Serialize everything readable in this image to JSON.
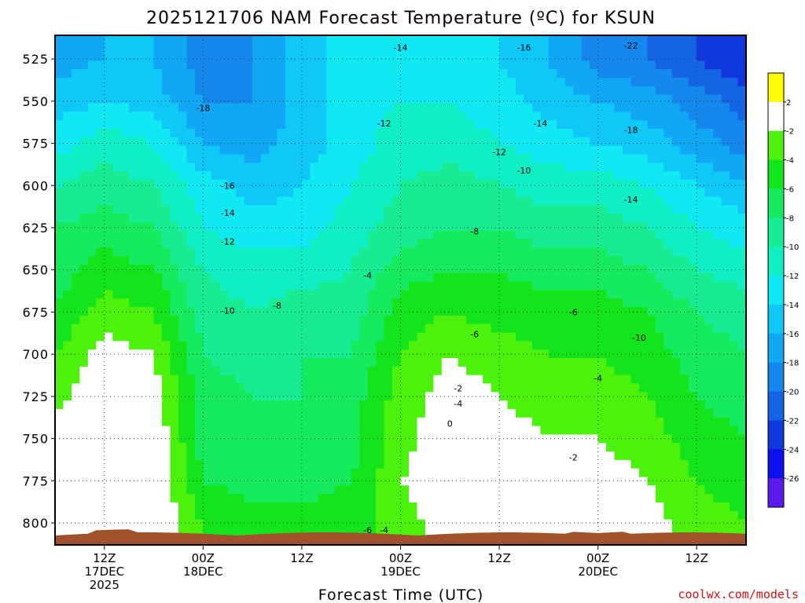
{
  "chart_data": {
    "type": "heatmap",
    "title": "2025121706 NAM Forecast Temperature (ºC) for KSUN",
    "xlabel": "Forecast Time (UTC)",
    "ylabel": "",
    "y_ticks": [
      "525",
      "550",
      "575",
      "600",
      "625",
      "650",
      "675",
      "700",
      "725",
      "750",
      "775",
      "800"
    ],
    "y_values": [
      525,
      550,
      575,
      600,
      625,
      650,
      675,
      700,
      725,
      750,
      775,
      800
    ],
    "ylim": [
      813,
      511
    ],
    "x_ticks": [
      {
        "hour": 6,
        "lines": [
          "12Z",
          "17DEC",
          "2025"
        ]
      },
      {
        "hour": 18,
        "lines": [
          "00Z",
          "18DEC"
        ]
      },
      {
        "hour": 30,
        "lines": [
          "12Z"
        ]
      },
      {
        "hour": 42,
        "lines": [
          "00Z",
          "19DEC"
        ]
      },
      {
        "hour": 54,
        "lines": [
          "12Z"
        ]
      },
      {
        "hour": 66,
        "lines": [
          "00Z",
          "20DEC"
        ]
      },
      {
        "hour": 78,
        "lines": [
          "12Z"
        ]
      }
    ],
    "xlim": [
      0,
      84
    ],
    "colorbar": {
      "levels": [
        2,
        -2,
        -4,
        -6,
        -8,
        -10,
        -12,
        -14,
        -16,
        -18,
        -20,
        -22,
        -24,
        -26
      ],
      "labels": [
        "2",
        "-2",
        "-4",
        "-6",
        "-8",
        "-10",
        "-12",
        "-14",
        "-16",
        "-18",
        "-20",
        "-22",
        "-24",
        "-26"
      ],
      "colors": [
        "#ffff00",
        "#ffffff",
        "#4cf20c",
        "#14e41c",
        "#16ea5e",
        "#18ec92",
        "#10eec4",
        "#10e8f4",
        "#10c8f8",
        "#10a8f4",
        "#1488ec",
        "#1464e4",
        "#1038dc",
        "#0c10f0",
        "#5a1aee"
      ]
    },
    "temperature_profile_hours": [
      0,
      6,
      12,
      18,
      24,
      30,
      36,
      42,
      48,
      54,
      60,
      66,
      72,
      78,
      84
    ],
    "temperature_profiles": {
      "525": [
        -17,
        -16,
        -16,
        -19,
        -18,
        -15,
        -13,
        -13,
        -14,
        -14,
        -16,
        -19,
        -20,
        -22,
        -24
      ],
      "550": [
        -15,
        -14,
        -15,
        -18,
        -18,
        -15,
        -13,
        -12,
        -12,
        -13,
        -15,
        -16,
        -17,
        -19,
        -21
      ],
      "575": [
        -13,
        -11,
        -12,
        -16,
        -17,
        -15,
        -13,
        -11,
        -11,
        -12,
        -13,
        -14,
        -15,
        -17,
        -19
      ],
      "600": [
        -10,
        -9,
        -10,
        -13,
        -15,
        -14,
        -12,
        -10,
        -9,
        -10,
        -11,
        -11,
        -12,
        -14,
        -16
      ],
      "625": [
        -8,
        -7,
        -8,
        -12,
        -13,
        -13,
        -11,
        -9,
        -8,
        -8,
        -9,
        -9,
        -10,
        -12,
        -13
      ],
      "650": [
        -7,
        -5,
        -6,
        -10,
        -11,
        -11,
        -10,
        -7,
        -6,
        -6,
        -7,
        -7,
        -8,
        -10,
        -11
      ],
      "675": [
        -6,
        -3,
        -4,
        -9,
        -10,
        -9,
        -9,
        -5,
        -4,
        -5,
        -5,
        -5,
        -6,
        -8,
        -9
      ],
      "700": [
        -4,
        -1,
        -2,
        -8,
        -9,
        -8,
        -8,
        -4,
        -2,
        -3,
        -4,
        -4,
        -5,
        -7,
        -8
      ],
      "725": [
        -3,
        0,
        -1,
        -7,
        -8,
        -8,
        -7,
        -3,
        -1,
        -2,
        -3,
        -3,
        -4,
        -6,
        -7
      ],
      "750": [
        -1,
        1,
        0,
        -7,
        -8,
        -7,
        -7,
        -3,
        0,
        -1,
        -2,
        -2,
        -3,
        -5,
        -6
      ],
      "775": [
        1,
        1,
        0,
        -6,
        -7,
        -7,
        -6,
        -2,
        0,
        -1,
        -1,
        -1,
        -2,
        -4,
        -5
      ],
      "800": [
        1,
        2,
        0,
        -4,
        -5,
        -5,
        -5,
        -3,
        -1,
        -1,
        0,
        0,
        -1,
        -3,
        -4
      ]
    },
    "contour_labels": [
      {
        "text": "-14",
        "hour": 42,
        "p": 520
      },
      {
        "text": "-16",
        "hour": 57,
        "p": 520
      },
      {
        "text": "-22",
        "hour": 70,
        "p": 519
      },
      {
        "text": "-18",
        "hour": 18,
        "p": 556
      },
      {
        "text": "-12",
        "hour": 40,
        "p": 565
      },
      {
        "text": "-14",
        "hour": 59,
        "p": 565
      },
      {
        "text": "-18",
        "hour": 70,
        "p": 569
      },
      {
        "text": "-12",
        "hour": 54,
        "p": 582
      },
      {
        "text": "-10",
        "hour": 57,
        "p": 593
      },
      {
        "text": "-16",
        "hour": 21,
        "p": 602
      },
      {
        "text": "-14",
        "hour": 70,
        "p": 610
      },
      {
        "text": "-14",
        "hour": 21,
        "p": 618
      },
      {
        "text": "-8",
        "hour": 51,
        "p": 629
      },
      {
        "text": "-12",
        "hour": 21,
        "p": 635
      },
      {
        "text": "-4",
        "hour": 38,
        "p": 655
      },
      {
        "text": "-10",
        "hour": 21,
        "p": 676
      },
      {
        "text": "-8",
        "hour": 27,
        "p": 673
      },
      {
        "text": "-6",
        "hour": 63,
        "p": 677
      },
      {
        "text": "-6",
        "hour": 51,
        "p": 690
      },
      {
        "text": "-10",
        "hour": 71,
        "p": 692
      },
      {
        "text": "-4",
        "hour": 66,
        "p": 716
      },
      {
        "text": "-2",
        "hour": 49,
        "p": 722
      },
      {
        "text": "-4",
        "hour": 49,
        "p": 731
      },
      {
        "text": "0",
        "hour": 48,
        "p": 743
      },
      {
        "text": "-2",
        "hour": 63,
        "p": 763
      },
      {
        "text": "-6",
        "hour": 38,
        "p": 806
      },
      {
        "text": "-4",
        "hour": 40,
        "p": 806
      }
    ],
    "grid": true,
    "legend": "colorbar-right"
  },
  "credit": "coolwx.com/models"
}
